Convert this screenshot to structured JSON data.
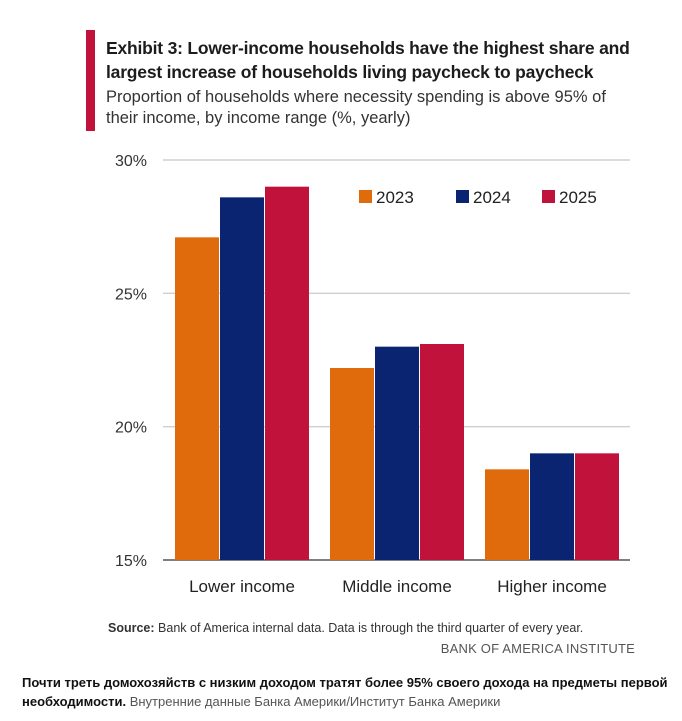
{
  "header": {
    "title": "Exhibit 3: Lower-income households have the highest share and largest increase of households living paycheck to paycheck",
    "subtitle": "Proportion of households where necessity spending is above 95% of their income, by income range (%, yearly)"
  },
  "chart_data": {
    "type": "bar",
    "categories": [
      "Lower income",
      "Middle income",
      "Higher income"
    ],
    "series": [
      {
        "name": "2023",
        "values": [
          27.1,
          22.2,
          18.4
        ],
        "color": "#e06b0c"
      },
      {
        "name": "2024",
        "values": [
          28.6,
          23.0,
          19.0
        ],
        "color": "#0a2472"
      },
      {
        "name": "2025",
        "values": [
          29.0,
          23.1,
          19.0
        ],
        "color": "#c0123b"
      }
    ],
    "ylim": [
      15,
      30
    ],
    "yticks": [
      15,
      20,
      25,
      30
    ],
    "ytick_labels": [
      "15%",
      "20%",
      "25%",
      "30%"
    ],
    "grid": true,
    "legend": "top-right",
    "xlabel": "",
    "ylabel": ""
  },
  "footer": {
    "source_label": "Source:",
    "source_text": "Bank of America internal data. Data is through the third quarter of every year.",
    "brand": "BANK OF AMERICA INSTITUTE"
  },
  "caption": {
    "main": "Почти треть домохозяйств с низким доходом тратят более 95% своего дохода на предметы первой необходимости.",
    "credit": "Внутренние данные Банка Америки/Институт Банка Америки"
  }
}
